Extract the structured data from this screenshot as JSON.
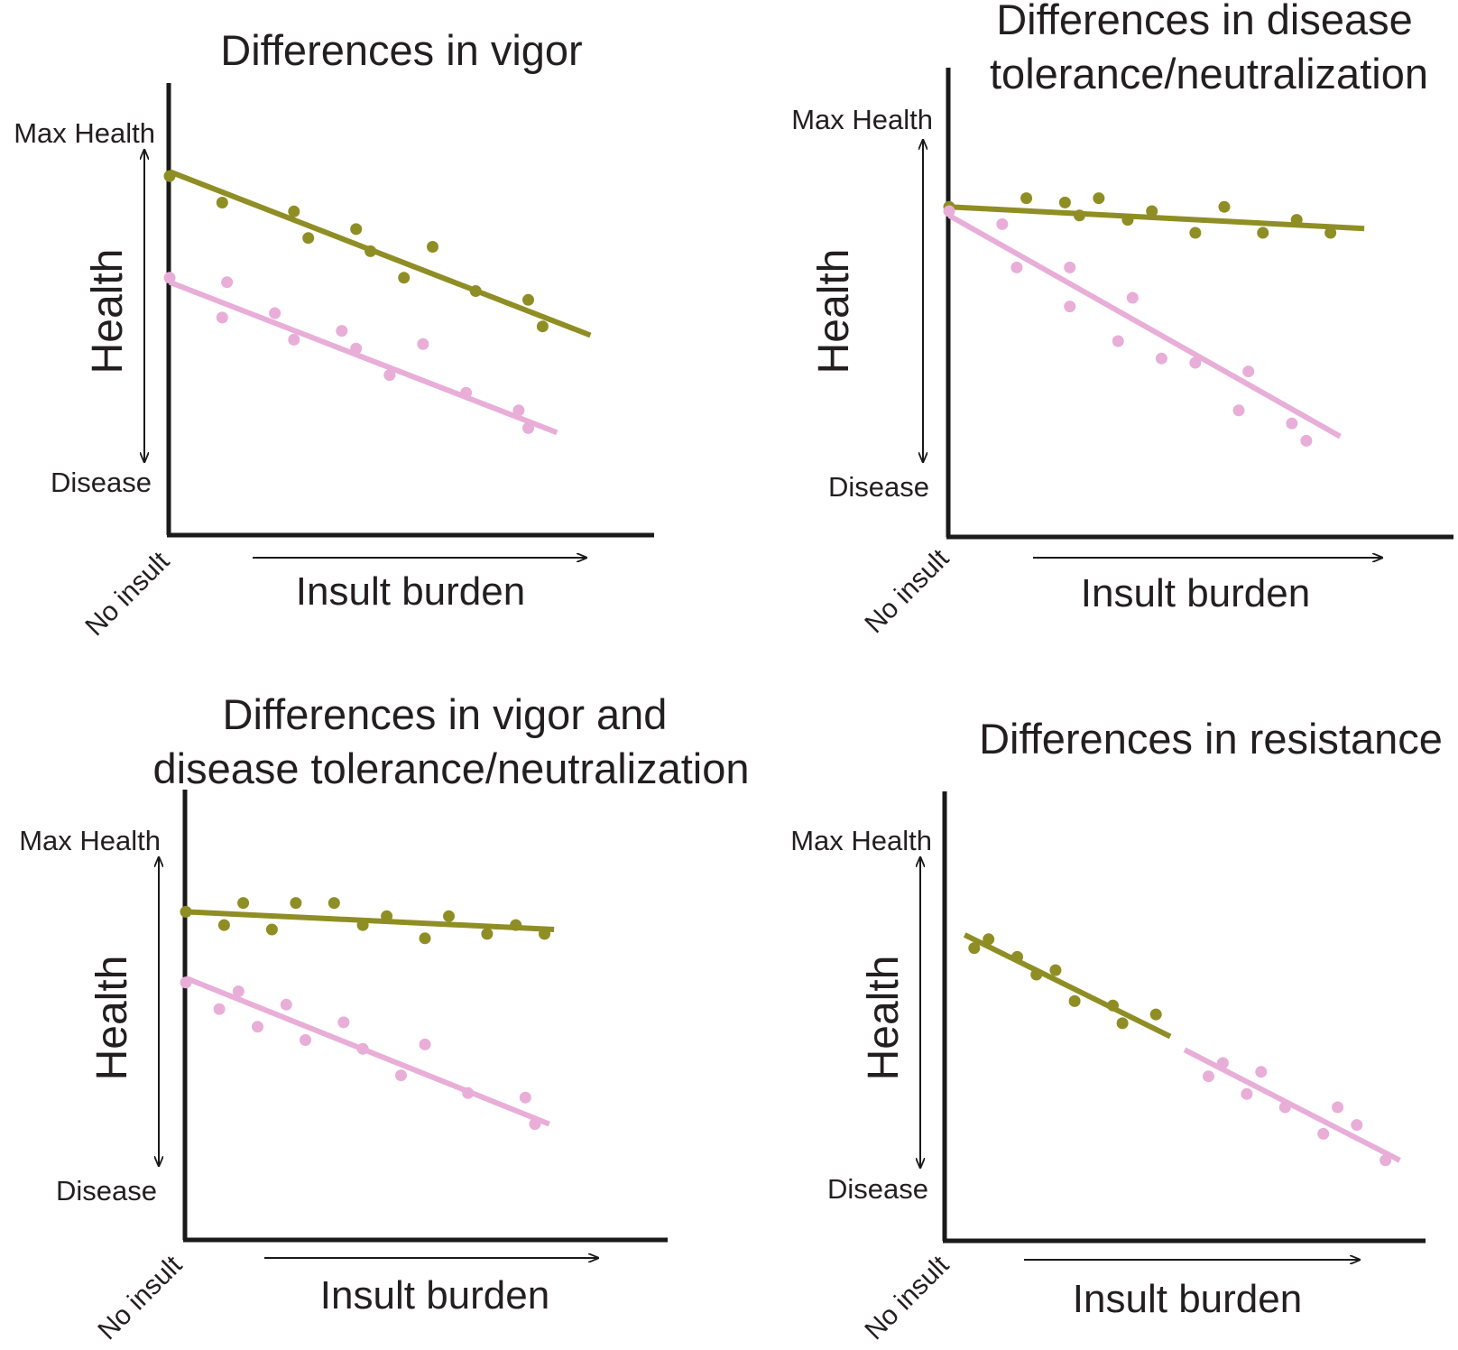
{
  "colors": {
    "series_a": "#8f8e24",
    "series_b": "#e8aed8",
    "axis": "#1a1a1a",
    "text": "#231f20"
  },
  "chart_data": [
    {
      "type": "scatter",
      "title": [
        "Differences in vigor"
      ],
      "ylabel": "Health",
      "ytick_top": "Max Health",
      "ytick_bottom": "Disease",
      "xlabel": "Insult burden",
      "origin_label": "No insult",
      "xlim": [
        0,
        10
      ],
      "ylim": [
        0,
        10
      ],
      "series": [
        {
          "name": "olive",
          "color": "#8f8e24",
          "points": [
            [
              0,
              8.1
            ],
            [
              1.1,
              7.5
            ],
            [
              2.6,
              7.3
            ],
            [
              2.9,
              6.7
            ],
            [
              3.9,
              6.9
            ],
            [
              4.2,
              6.4
            ],
            [
              4.9,
              5.8
            ],
            [
              5.5,
              6.5
            ],
            [
              6.4,
              5.5
            ],
            [
              7.5,
              5.3
            ],
            [
              7.8,
              4.7
            ]
          ],
          "fit": [
            [
              0,
              8.2
            ],
            [
              8.8,
              4.5
            ]
          ]
        },
        {
          "name": "pink",
          "color": "#e8aed8",
          "points": [
            [
              0,
              5.8
            ],
            [
              1.2,
              5.7
            ],
            [
              1.1,
              4.9
            ],
            [
              2.2,
              5.0
            ],
            [
              2.6,
              4.4
            ],
            [
              3.6,
              4.6
            ],
            [
              3.9,
              4.2
            ],
            [
              4.6,
              3.6
            ],
            [
              5.3,
              4.3
            ],
            [
              6.2,
              3.2
            ],
            [
              7.3,
              2.8
            ],
            [
              7.5,
              2.4
            ]
          ],
          "fit": [
            [
              0,
              5.7
            ],
            [
              8.1,
              2.3
            ]
          ]
        }
      ]
    },
    {
      "type": "scatter",
      "title": [
        "Differences in disease",
        "tolerance/neutralization"
      ],
      "ylabel": "Health",
      "ytick_top": "Max Health",
      "ytick_bottom": "Disease",
      "xlabel": "Insult burden",
      "origin_label": "No insult",
      "xlim": [
        0,
        10
      ],
      "ylim": [
        0,
        10
      ],
      "series": [
        {
          "name": "olive",
          "color": "#8f8e24",
          "points": [
            [
              0,
              7.6
            ],
            [
              1.6,
              7.8
            ],
            [
              2.4,
              7.7
            ],
            [
              2.7,
              7.4
            ],
            [
              3.1,
              7.8
            ],
            [
              3.7,
              7.3
            ],
            [
              4.2,
              7.5
            ],
            [
              5.1,
              7.0
            ],
            [
              5.7,
              7.6
            ],
            [
              6.5,
              7.0
            ],
            [
              7.2,
              7.3
            ],
            [
              7.9,
              7.0
            ]
          ],
          "fit": [
            [
              0,
              7.6
            ],
            [
              8.6,
              7.1
            ]
          ]
        },
        {
          "name": "pink",
          "color": "#e8aed8",
          "points": [
            [
              0,
              7.5
            ],
            [
              1.1,
              7.2
            ],
            [
              1.4,
              6.2
            ],
            [
              2.5,
              6.2
            ],
            [
              2.5,
              5.3
            ],
            [
              3.8,
              5.5
            ],
            [
              3.5,
              4.5
            ],
            [
              4.4,
              4.1
            ],
            [
              5.1,
              4.0
            ],
            [
              6.2,
              3.8
            ],
            [
              6.0,
              2.9
            ],
            [
              7.1,
              2.6
            ],
            [
              7.4,
              2.2
            ]
          ],
          "fit": [
            [
              0,
              7.4
            ],
            [
              8.1,
              2.3
            ]
          ]
        }
      ]
    },
    {
      "type": "scatter",
      "title": [
        "Differences in vigor and",
        "disease tolerance/neutralization"
      ],
      "ylabel": "Health",
      "ytick_top": "Max Health",
      "ytick_bottom": "Disease",
      "xlabel": "Insult burden",
      "origin_label": "No insult",
      "xlim": [
        0,
        10
      ],
      "ylim": [
        0,
        10
      ],
      "series": [
        {
          "name": "olive",
          "color": "#8f8e24",
          "points": [
            [
              0,
              7.4
            ],
            [
              0.8,
              7.1
            ],
            [
              1.2,
              7.6
            ],
            [
              1.8,
              7.0
            ],
            [
              2.3,
              7.6
            ],
            [
              3.1,
              7.6
            ],
            [
              3.7,
              7.1
            ],
            [
              4.2,
              7.3
            ],
            [
              5.0,
              6.8
            ],
            [
              5.5,
              7.3
            ],
            [
              6.3,
              6.9
            ],
            [
              6.9,
              7.1
            ],
            [
              7.5,
              6.9
            ]
          ],
          "fit": [
            [
              0,
              7.4
            ],
            [
              7.7,
              7.0
            ]
          ]
        },
        {
          "name": "pink",
          "color": "#e8aed8",
          "points": [
            [
              0,
              5.8
            ],
            [
              0.7,
              5.2
            ],
            [
              1.1,
              5.6
            ],
            [
              1.5,
              4.8
            ],
            [
              2.1,
              5.3
            ],
            [
              2.5,
              4.5
            ],
            [
              3.3,
              4.9
            ],
            [
              3.7,
              4.3
            ],
            [
              4.5,
              3.7
            ],
            [
              5.0,
              4.4
            ],
            [
              5.9,
              3.3
            ],
            [
              7.1,
              3.2
            ],
            [
              7.3,
              2.6
            ]
          ],
          "fit": [
            [
              0,
              5.9
            ],
            [
              7.6,
              2.6
            ]
          ]
        }
      ]
    },
    {
      "type": "scatter",
      "title": [
        "Differences in resistance"
      ],
      "ylabel": "Health",
      "ytick_top": "Max Health",
      "ytick_bottom": "Disease",
      "xlabel": "Insult burden",
      "origin_label": "No insult",
      "xlim": [
        0,
        10
      ],
      "ylim": [
        0,
        10
      ],
      "series": [
        {
          "name": "olive",
          "color": "#8f8e24",
          "points": [
            [
              0.6,
              6.6
            ],
            [
              0.9,
              6.8
            ],
            [
              1.5,
              6.4
            ],
            [
              1.9,
              6.0
            ],
            [
              2.3,
              6.1
            ],
            [
              2.7,
              5.4
            ],
            [
              3.5,
              5.3
            ],
            [
              3.7,
              4.9
            ],
            [
              4.4,
              5.1
            ]
          ],
          "fit": [
            [
              0.4,
              6.9
            ],
            [
              4.7,
              4.6
            ]
          ]
        },
        {
          "name": "pink",
          "color": "#e8aed8",
          "points": [
            [
              5.5,
              3.7
            ],
            [
              5.8,
              4.0
            ],
            [
              6.3,
              3.3
            ],
            [
              6.6,
              3.8
            ],
            [
              7.1,
              3.0
            ],
            [
              7.9,
              2.4
            ],
            [
              8.2,
              3.0
            ],
            [
              8.6,
              2.6
            ],
            [
              9.2,
              1.8
            ]
          ],
          "fit": [
            [
              5.0,
              4.3
            ],
            [
              9.5,
              1.8
            ]
          ]
        }
      ]
    }
  ]
}
